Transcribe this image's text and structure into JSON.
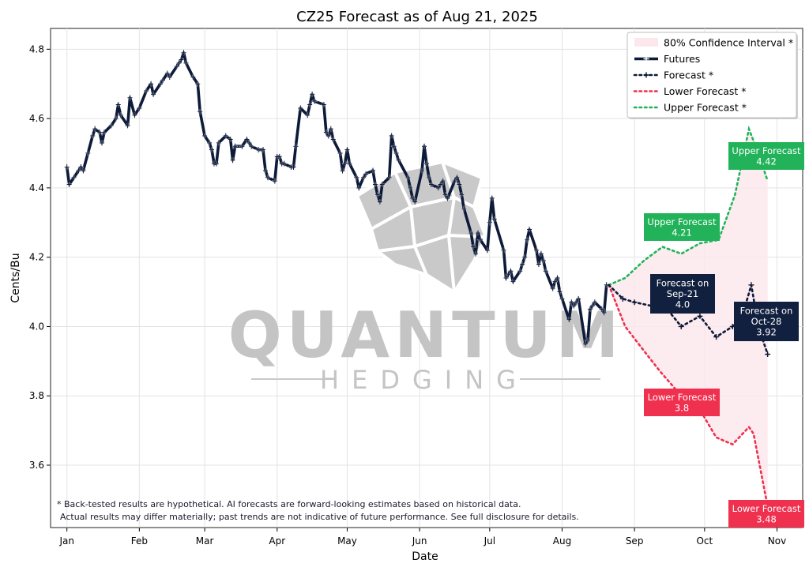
{
  "chart_data": {
    "type": "line",
    "title": "CZ25 Forecast as of Aug 21, 2025",
    "xlabel": "Date",
    "ylabel": "Cents/Bu",
    "ylim": [
      3.42,
      4.86
    ],
    "xlim": [
      "2024-12-25",
      "2025-11-12"
    ],
    "grid": true,
    "legend_position": "top-right",
    "x_ticks": [
      {
        "date": "2025-01-01",
        "label": "Jan"
      },
      {
        "date": "2025-02-01",
        "label": "Feb"
      },
      {
        "date": "2025-03-01",
        "label": "Mar"
      },
      {
        "date": "2025-04-01",
        "label": "Apr"
      },
      {
        "date": "2025-05-01",
        "label": "May"
      },
      {
        "date": "2025-06-01",
        "label": "Jun"
      },
      {
        "date": "2025-07-01",
        "label": "Jul"
      },
      {
        "date": "2025-08-01",
        "label": "Aug"
      },
      {
        "date": "2025-09-01",
        "label": "Sep"
      },
      {
        "date": "2025-10-01",
        "label": "Oct"
      },
      {
        "date": "2025-11-01",
        "label": "Nov"
      }
    ],
    "y_ticks": [
      {
        "value": 3.6,
        "label": "3.6"
      },
      {
        "value": 3.8,
        "label": "3.8"
      },
      {
        "value": 4.0,
        "label": "4.0"
      },
      {
        "value": 4.2,
        "label": "4.2"
      },
      {
        "value": 4.4,
        "label": "4.4"
      },
      {
        "value": 4.6,
        "label": "4.6"
      },
      {
        "value": 4.8,
        "label": "4.8"
      }
    ],
    "legend": [
      {
        "label": "80% Confidence Interval *",
        "style": "fill",
        "color": "#fce8ec"
      },
      {
        "label": "Futures",
        "style": "solid-marker",
        "color": "#0d1a38"
      },
      {
        "label": "Forecast *",
        "style": "dotted-marker",
        "color": "#0d1a38"
      },
      {
        "label": "Lower Forecast *",
        "style": "dotted",
        "color": "#f0304f"
      },
      {
        "label": "Upper Forecast *",
        "style": "dotted",
        "color": "#22b35a"
      }
    ],
    "series": [
      {
        "name": "Futures",
        "color": "#0d1a38",
        "points": [
          [
            "2025-01-01",
            4.46
          ],
          [
            "2025-01-02",
            4.41
          ],
          [
            "2025-01-04",
            4.43
          ],
          [
            "2025-01-06",
            4.45
          ],
          [
            "2025-01-07",
            4.46
          ],
          [
            "2025-01-08",
            4.45
          ],
          [
            "2025-01-10",
            4.5
          ],
          [
            "2025-01-12",
            4.55
          ],
          [
            "2025-01-13",
            4.57
          ],
          [
            "2025-01-15",
            4.56
          ],
          [
            "2025-01-16",
            4.53
          ],
          [
            "2025-01-17",
            4.56
          ],
          [
            "2025-01-20",
            4.58
          ],
          [
            "2025-01-22",
            4.6
          ],
          [
            "2025-01-23",
            4.64
          ],
          [
            "2025-01-24",
            4.61
          ],
          [
            "2025-01-27",
            4.58
          ],
          [
            "2025-01-28",
            4.66
          ],
          [
            "2025-01-30",
            4.61
          ],
          [
            "2025-02-01",
            4.63
          ],
          [
            "2025-02-04",
            4.68
          ],
          [
            "2025-02-06",
            4.7
          ],
          [
            "2025-02-07",
            4.67
          ],
          [
            "2025-02-10",
            4.7
          ],
          [
            "2025-02-11",
            4.71
          ],
          [
            "2025-02-13",
            4.73
          ],
          [
            "2025-02-14",
            4.72
          ],
          [
            "2025-02-17",
            4.75
          ],
          [
            "2025-02-18",
            4.76
          ],
          [
            "2025-02-19",
            4.77
          ],
          [
            "2025-02-20",
            4.79
          ],
          [
            "2025-02-21",
            4.76
          ],
          [
            "2025-02-24",
            4.72
          ],
          [
            "2025-02-26",
            4.7
          ],
          [
            "2025-02-27",
            4.62
          ],
          [
            "2025-03-01",
            4.55
          ],
          [
            "2025-03-03",
            4.53
          ],
          [
            "2025-03-04",
            4.51
          ],
          [
            "2025-03-05",
            4.47
          ],
          [
            "2025-03-06",
            4.47
          ],
          [
            "2025-03-07",
            4.53
          ],
          [
            "2025-03-10",
            4.55
          ],
          [
            "2025-03-12",
            4.54
          ],
          [
            "2025-03-13",
            4.48
          ],
          [
            "2025-03-14",
            4.52
          ],
          [
            "2025-03-17",
            4.52
          ],
          [
            "2025-03-19",
            4.54
          ],
          [
            "2025-03-20",
            4.53
          ],
          [
            "2025-03-21",
            4.52
          ],
          [
            "2025-03-24",
            4.51
          ],
          [
            "2025-03-26",
            4.51
          ],
          [
            "2025-03-27",
            4.45
          ],
          [
            "2025-03-28",
            4.43
          ],
          [
            "2025-03-31",
            4.42
          ],
          [
            "2025-04-01",
            4.49
          ],
          [
            "2025-04-02",
            4.49
          ],
          [
            "2025-04-03",
            4.47
          ],
          [
            "2025-04-04",
            4.47
          ],
          [
            "2025-04-07",
            4.46
          ],
          [
            "2025-04-08",
            4.46
          ],
          [
            "2025-04-09",
            4.52
          ],
          [
            "2025-04-11",
            4.63
          ],
          [
            "2025-04-14",
            4.61
          ],
          [
            "2025-04-15",
            4.64
          ],
          [
            "2025-04-16",
            4.67
          ],
          [
            "2025-04-17",
            4.65
          ],
          [
            "2025-04-21",
            4.64
          ],
          [
            "2025-04-22",
            4.56
          ],
          [
            "2025-04-23",
            4.55
          ],
          [
            "2025-04-24",
            4.57
          ],
          [
            "2025-04-25",
            4.54
          ],
          [
            "2025-04-28",
            4.5
          ],
          [
            "2025-04-29",
            4.45
          ],
          [
            "2025-04-30",
            4.47
          ],
          [
            "2025-05-01",
            4.51
          ],
          [
            "2025-05-02",
            4.47
          ],
          [
            "2025-05-05",
            4.43
          ],
          [
            "2025-05-06",
            4.4
          ],
          [
            "2025-05-08",
            4.43
          ],
          [
            "2025-05-09",
            4.44
          ],
          [
            "2025-05-12",
            4.45
          ],
          [
            "2025-05-13",
            4.41
          ],
          [
            "2025-05-14",
            4.38
          ],
          [
            "2025-05-15",
            4.36
          ],
          [
            "2025-05-16",
            4.41
          ],
          [
            "2025-05-19",
            4.43
          ],
          [
            "2025-05-20",
            4.55
          ],
          [
            "2025-05-21",
            4.52
          ],
          [
            "2025-05-22",
            4.5
          ],
          [
            "2025-05-23",
            4.48
          ],
          [
            "2025-05-27",
            4.43
          ],
          [
            "2025-05-28",
            4.4
          ],
          [
            "2025-05-29",
            4.37
          ],
          [
            "2025-05-30",
            4.36
          ],
          [
            "2025-06-02",
            4.45
          ],
          [
            "2025-06-03",
            4.52
          ],
          [
            "2025-06-04",
            4.47
          ],
          [
            "2025-06-05",
            4.43
          ],
          [
            "2025-06-06",
            4.41
          ],
          [
            "2025-06-09",
            4.4
          ],
          [
            "2025-06-10",
            4.41
          ],
          [
            "2025-06-11",
            4.42
          ],
          [
            "2025-06-12",
            4.38
          ],
          [
            "2025-06-13",
            4.37
          ],
          [
            "2025-06-16",
            4.42
          ],
          [
            "2025-06-17",
            4.43
          ],
          [
            "2025-06-18",
            4.41
          ],
          [
            "2025-06-19",
            4.38
          ],
          [
            "2025-06-20",
            4.34
          ],
          [
            "2025-06-23",
            4.27
          ],
          [
            "2025-06-24",
            4.23
          ],
          [
            "2025-06-25",
            4.21
          ],
          [
            "2025-06-26",
            4.27
          ],
          [
            "2025-06-27",
            4.25
          ],
          [
            "2025-06-30",
            4.22
          ],
          [
            "2025-07-01",
            4.3
          ],
          [
            "2025-07-02",
            4.37
          ],
          [
            "2025-07-03",
            4.31
          ],
          [
            "2025-07-07",
            4.22
          ],
          [
            "2025-07-08",
            4.14
          ],
          [
            "2025-07-09",
            4.15
          ],
          [
            "2025-07-10",
            4.16
          ],
          [
            "2025-07-11",
            4.13
          ],
          [
            "2025-07-14",
            4.16
          ],
          [
            "2025-07-15",
            4.18
          ],
          [
            "2025-07-16",
            4.2
          ],
          [
            "2025-07-17",
            4.25
          ],
          [
            "2025-07-18",
            4.28
          ],
          [
            "2025-07-21",
            4.22
          ],
          [
            "2025-07-22",
            4.18
          ],
          [
            "2025-07-23",
            4.21
          ],
          [
            "2025-07-24",
            4.19
          ],
          [
            "2025-07-25",
            4.16
          ],
          [
            "2025-07-28",
            4.11
          ],
          [
            "2025-07-29",
            4.13
          ],
          [
            "2025-07-30",
            4.14
          ],
          [
            "2025-07-31",
            4.1
          ],
          [
            "2025-08-01",
            4.08
          ],
          [
            "2025-08-04",
            4.02
          ],
          [
            "2025-08-05",
            4.07
          ],
          [
            "2025-08-06",
            4.06
          ],
          [
            "2025-08-07",
            4.07
          ],
          [
            "2025-08-08",
            4.08
          ],
          [
            "2025-08-11",
            3.95
          ],
          [
            "2025-08-12",
            3.96
          ],
          [
            "2025-08-13",
            4.05
          ],
          [
            "2025-08-14",
            4.06
          ],
          [
            "2025-08-15",
            4.07
          ],
          [
            "2025-08-18",
            4.05
          ],
          [
            "2025-08-19",
            4.04
          ],
          [
            "2025-08-20",
            4.12
          ]
        ]
      },
      {
        "name": "Forecast *",
        "color": "#0d1a38",
        "points": [
          [
            "2025-08-21",
            4.12
          ],
          [
            "2025-08-27",
            4.08
          ],
          [
            "2025-09-01",
            4.07
          ],
          [
            "2025-09-08",
            4.06
          ],
          [
            "2025-09-15",
            4.05
          ],
          [
            "2025-09-21",
            4.0
          ],
          [
            "2025-09-29",
            4.03
          ],
          [
            "2025-10-06",
            3.97
          ],
          [
            "2025-10-13",
            4.0
          ],
          [
            "2025-10-18",
            4.05
          ],
          [
            "2025-10-21",
            4.12
          ],
          [
            "2025-10-24",
            4.0
          ],
          [
            "2025-10-28",
            3.92
          ]
        ]
      },
      {
        "name": "Lower Forecast *",
        "color": "#f0304f",
        "points": [
          [
            "2025-08-21",
            4.12
          ],
          [
            "2025-08-28",
            4.0
          ],
          [
            "2025-09-05",
            3.93
          ],
          [
            "2025-09-12",
            3.87
          ],
          [
            "2025-09-21",
            3.8
          ],
          [
            "2025-09-29",
            3.76
          ],
          [
            "2025-10-06",
            3.68
          ],
          [
            "2025-10-13",
            3.66
          ],
          [
            "2025-10-20",
            3.71
          ],
          [
            "2025-10-22",
            3.69
          ],
          [
            "2025-10-28",
            3.48
          ]
        ]
      },
      {
        "name": "Upper Forecast *",
        "color": "#22b35a",
        "points": [
          [
            "2025-08-21",
            4.12
          ],
          [
            "2025-08-28",
            4.14
          ],
          [
            "2025-09-05",
            4.19
          ],
          [
            "2025-09-13",
            4.23
          ],
          [
            "2025-09-21",
            4.21
          ],
          [
            "2025-09-29",
            4.24
          ],
          [
            "2025-10-07",
            4.25
          ],
          [
            "2025-10-14",
            4.38
          ],
          [
            "2025-10-20",
            4.57
          ],
          [
            "2025-10-24",
            4.5
          ],
          [
            "2025-10-28",
            4.42
          ]
        ]
      }
    ],
    "annotations": [
      {
        "type": "upper",
        "lines": [
          "Upper Forecast",
          "4.42"
        ],
        "color": "#22b35a",
        "date": "2025-10-28",
        "value": 4.42
      },
      {
        "type": "upper",
        "lines": [
          "Upper Forecast",
          "4.21"
        ],
        "color": "#22b35a",
        "date": "2025-09-21",
        "value": 4.21
      },
      {
        "type": "forecast",
        "lines": [
          "Forecast on",
          "Sep-21",
          "4.0"
        ],
        "color": "#12203f",
        "date": "2025-09-21",
        "value": 4.0
      },
      {
        "type": "forecast",
        "lines": [
          "Forecast on",
          "Oct-28",
          "3.92"
        ],
        "color": "#12203f",
        "date": "2025-10-28",
        "value": 3.92
      },
      {
        "type": "lower",
        "lines": [
          "Lower Forecast",
          "3.8"
        ],
        "color": "#f0304f",
        "date": "2025-09-21",
        "value": 3.8
      },
      {
        "type": "lower",
        "lines": [
          "Lower Forecast",
          "3.48"
        ],
        "color": "#f0304f",
        "date": "2025-10-28",
        "value": 3.48
      }
    ],
    "disclaimer": [
      "* Back-tested results are hypothetical. AI forecasts are forward-looking estimates based on historical data.",
      "Actual results may differ materially; past trends are not indicative of future performance. See full disclosure for details."
    ],
    "watermark": {
      "main": "QUANTUM",
      "sub": "HEDGING"
    }
  }
}
